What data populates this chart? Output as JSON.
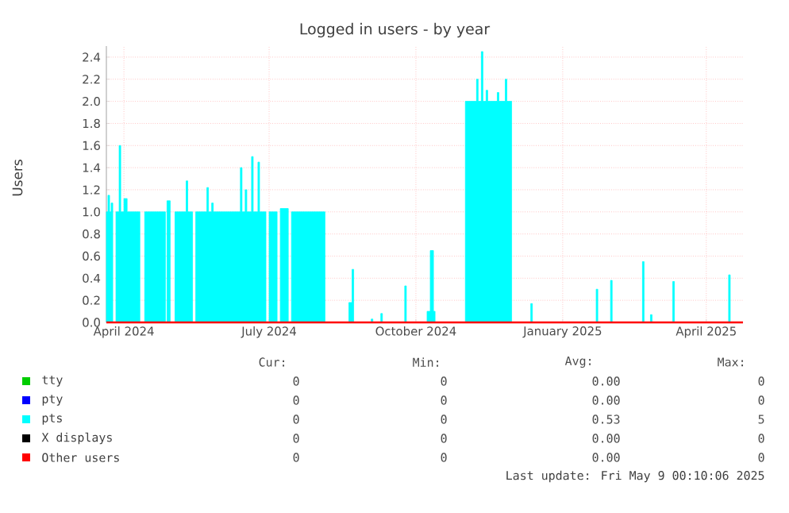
{
  "chart_data": {
    "type": "area",
    "title": "Logged in users - by year",
    "ylabel": "Users",
    "xlim": [
      "2024-04-05",
      "2025-05-09"
    ],
    "xticks": [
      {
        "value": "2024-04-16",
        "label": "April 2024"
      },
      {
        "value": "2024-07-16",
        "label": "July 2024"
      },
      {
        "value": "2024-10-16",
        "label": "October 2024"
      },
      {
        "value": "2025-01-16",
        "label": "January 2025"
      },
      {
        "value": "2025-04-16",
        "label": "April 2025"
      }
    ],
    "ylim": [
      0,
      2.5
    ],
    "yticks": [
      {
        "value": 0,
        "label": "0.0"
      },
      {
        "value": 0.2,
        "label": "0.2"
      },
      {
        "value": 0.4,
        "label": "0.4"
      },
      {
        "value": 0.6,
        "label": "0.6"
      },
      {
        "value": 0.8,
        "label": "0.8"
      },
      {
        "value": 1,
        "label": "1.0"
      },
      {
        "value": 1.2,
        "label": "1.2"
      },
      {
        "value": 1.4,
        "label": "1.4"
      },
      {
        "value": 1.6,
        "label": "1.6"
      },
      {
        "value": 1.8,
        "label": "1.8"
      },
      {
        "value": 2,
        "label": "2.0"
      },
      {
        "value": 2.2,
        "label": "2.2"
      },
      {
        "value": 2.4,
        "label": "2.4"
      }
    ],
    "grid": true,
    "legend": "bottom",
    "series": [
      {
        "name": "tty",
        "type": "line",
        "color": "#00cc00"
      },
      {
        "name": "pty",
        "type": "line",
        "color": "#0000ff"
      },
      {
        "name": "pts",
        "color": "#00ffff",
        "x": [
          "2024-04-05",
          "2024-04-06",
          "2024-04-07",
          "2024-04-08",
          "2024-04-09",
          "2024-04-11",
          "2024-04-13",
          "2024-04-14",
          "2024-04-16",
          "2024-04-18",
          "2024-04-26",
          "2024-04-29",
          "2024-05-12",
          "2024-05-13",
          "2024-05-15",
          "2024-05-18",
          "2024-05-25",
          "2024-05-26",
          "2024-05-29",
          "2024-05-31",
          "2024-06-07",
          "2024-06-08",
          "2024-06-10",
          "2024-06-11",
          "2024-06-28",
          "2024-06-29",
          "2024-07-01",
          "2024-07-02",
          "2024-07-05",
          "2024-07-06",
          "2024-07-09",
          "2024-07-10",
          "2024-07-14",
          "2024-07-16",
          "2024-07-21",
          "2024-07-23",
          "2024-07-28",
          "2024-07-30",
          "2024-08-20",
          "2024-09-04",
          "2024-09-06",
          "2024-09-07",
          "2024-09-18",
          "2024-09-19",
          "2024-09-24",
          "2024-09-25",
          "2024-10-09",
          "2024-10-10",
          "2024-10-23",
          "2024-10-25",
          "2024-10-27",
          "2024-10-28",
          "2024-11-16",
          "2024-11-23",
          "2024-11-24",
          "2024-11-26",
          "2024-11-27",
          "2024-11-29",
          "2024-11-30",
          "2024-12-06",
          "2024-12-07",
          "2024-12-11",
          "2024-12-12",
          "2024-12-15",
          "2024-12-27",
          "2024-12-28",
          "2025-02-06",
          "2025-02-07",
          "2025-02-15",
          "2025-02-16",
          "2025-03-07",
          "2025-03-08",
          "2025-03-12",
          "2025-03-13",
          "2025-03-26",
          "2025-03-27",
          "2025-04-30",
          "2025-05-01",
          "2025-05-09"
        ],
        "values": [
          1.0,
          1.15,
          1.0,
          1.08,
          0,
          1.0,
          1.6,
          1.0,
          1.12,
          1.0,
          0,
          1.0,
          0,
          1.1,
          0,
          1.0,
          1.28,
          1.0,
          0,
          1.0,
          1.22,
          1.0,
          1.08,
          1.0,
          1.4,
          1.0,
          1.2,
          1.0,
          1.5,
          1.0,
          1.45,
          1.0,
          0,
          1.0,
          0,
          1.03,
          0,
          1.0,
          0,
          0.18,
          0.48,
          0,
          0.03,
          0,
          0.08,
          0,
          0.33,
          0,
          0.1,
          0.65,
          0.1,
          0,
          2.0,
          2.2,
          2.0,
          2.45,
          2.0,
          2.1,
          2.0,
          2.08,
          2.0,
          2.2,
          2.0,
          0,
          0.17,
          0,
          0.3,
          0,
          0.38,
          0,
          0.55,
          0,
          0.07,
          0,
          0.37,
          0,
          0.43,
          0,
          0
        ]
      },
      {
        "name": "X displays",
        "type": "line",
        "color": "#000000"
      },
      {
        "name": "Other users",
        "type": "line",
        "color": "#ff0000",
        "x": [
          "2024-04-05",
          "2025-05-09"
        ],
        "values": [
          0,
          0
        ]
      }
    ],
    "annotations": [
      "Cur:",
      "Min:",
      "Avg:",
      "Max:",
      "0",
      "0",
      "0.00",
      "0",
      "0",
      "0",
      "0.00",
      "0",
      "0",
      "0",
      "0.53",
      "5",
      "0",
      "0",
      "0.00",
      "0",
      "0",
      "0",
      "0.00",
      "0",
      "Last update: Fri May  9 00:10:06 2025"
    ]
  }
}
